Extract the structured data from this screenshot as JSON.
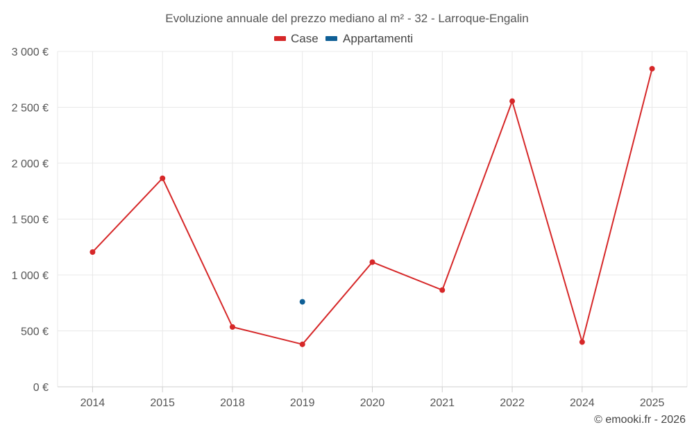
{
  "chart_data": {
    "type": "line",
    "title": "Evoluzione annuale del prezzo mediano al m² - 32 - Larroque-Engalin",
    "categories": [
      "2014",
      "2015",
      "2018",
      "2019",
      "2020",
      "2021",
      "2022",
      "2024",
      "2025"
    ],
    "series": [
      {
        "name": "Case",
        "color": "#d62728",
        "values": [
          1205,
          1865,
          535,
          380,
          1115,
          865,
          2555,
          400,
          2845
        ]
      },
      {
        "name": "Appartamenti",
        "color": "#0f5f96",
        "values": [
          null,
          null,
          null,
          760,
          null,
          null,
          null,
          null,
          null
        ]
      }
    ],
    "ylim": [
      0,
      3000
    ],
    "yticks": [
      0,
      500,
      1000,
      1500,
      2000,
      2500,
      3000
    ],
    "ytick_labels": [
      "0 €",
      "500 €",
      "1 000 €",
      "1 500 €",
      "2 000 €",
      "2 500 €",
      "3 000 €"
    ],
    "xlabel": "",
    "ylabel": "",
    "grid": true,
    "legend": "top-center"
  },
  "credit": "© emooki.fr - 2026"
}
